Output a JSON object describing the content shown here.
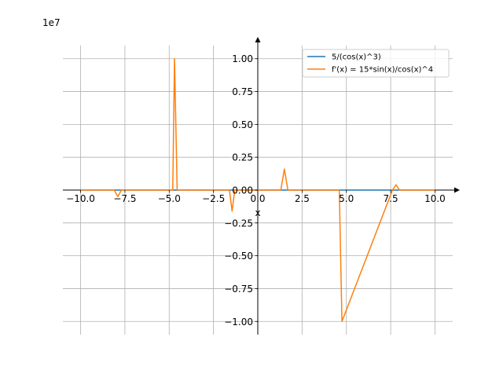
{
  "chart_data": {
    "type": "line",
    "title": "",
    "xlabel": "x",
    "ylabel": "",
    "y_offset_label": "1e7",
    "y_scale_factor": 10000000,
    "xlim": [
      -11.0,
      11.0
    ],
    "ylim": [
      -1.1,
      1.1
    ],
    "xticks": [
      -10.0,
      -7.5,
      -5.0,
      -2.5,
      0.0,
      2.5,
      5.0,
      7.5,
      10.0
    ],
    "xtick_labels": [
      "−10.0",
      "−7.5",
      "−5.0",
      "−2.5",
      "0.0",
      "2.5",
      "5.0",
      "7.5",
      "10.0"
    ],
    "yticks": [
      -1.0,
      -0.75,
      -0.5,
      -0.25,
      0.0,
      0.25,
      0.5,
      0.75,
      1.0
    ],
    "ytick_labels": [
      "−1.00",
      "−0.75",
      "−0.50",
      "−0.25",
      "0.00",
      "0.25",
      "0.50",
      "0.75",
      "1.00"
    ],
    "grid": true,
    "legend_position": "top-right",
    "series": [
      {
        "name": "5/(cos(x)^3)",
        "color": "#1f77b4",
        "x": [
          -10.0,
          10.0
        ],
        "y": [
          0.0,
          0.0
        ]
      },
      {
        "name": "f'(x) = 15*sin(x)/cos(x)^4",
        "color": "#ff7f0e",
        "x": [
          -10.0,
          -8.1,
          -7.9,
          -7.7,
          -4.8,
          -4.7,
          -4.55,
          -2.0,
          -1.6,
          -1.45,
          -1.3,
          1.3,
          1.5,
          1.7,
          4.5,
          4.6,
          4.75,
          7.6,
          7.8,
          8.0,
          10.0
        ],
        "y": [
          0.0,
          0.0,
          -0.05,
          0.0,
          0.0,
          1.0,
          0.0,
          0.0,
          0.0,
          -0.16,
          0.0,
          0.0,
          0.16,
          0.0,
          0.0,
          0.0,
          -1.0,
          0.0,
          0.04,
          0.0,
          0.0
        ]
      }
    ]
  }
}
